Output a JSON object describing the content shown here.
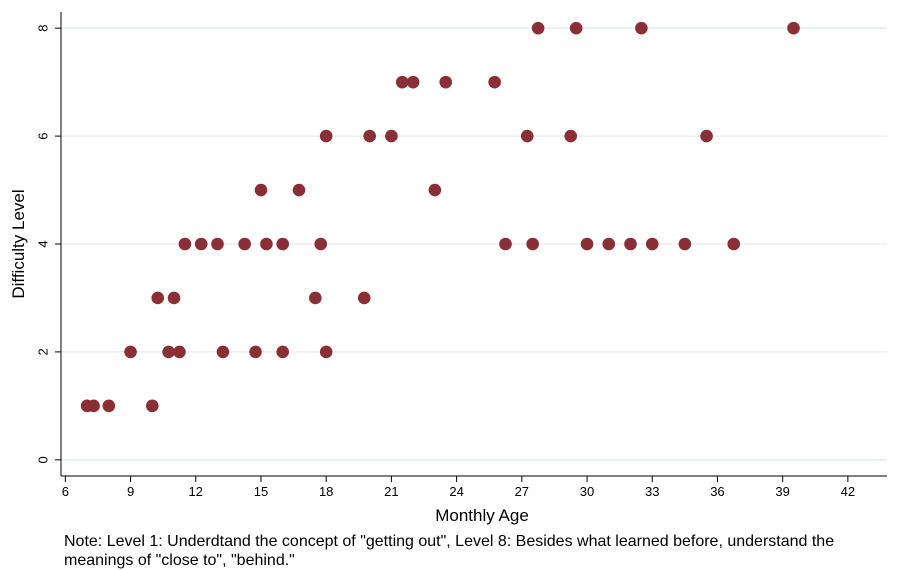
{
  "chart_data": {
    "type": "scatter",
    "title": "",
    "xlabel": "Monthly Age",
    "ylabel": "Difficulty Level",
    "xlim": [
      5.8,
      43.8
    ],
    "ylim": [
      -0.3,
      8.3
    ],
    "xticks": [
      6,
      9,
      12,
      15,
      18,
      21,
      24,
      27,
      30,
      33,
      36,
      39,
      42
    ],
    "yticks": [
      0,
      2,
      4,
      6,
      8
    ],
    "grid": true,
    "legend": "none",
    "marker_color": "#8b2f36",
    "points": [
      {
        "x": 7.0,
        "y": 1
      },
      {
        "x": 7.3,
        "y": 1
      },
      {
        "x": 8.0,
        "y": 1
      },
      {
        "x": 10.0,
        "y": 1
      },
      {
        "x": 9.0,
        "y": 2
      },
      {
        "x": 10.75,
        "y": 2
      },
      {
        "x": 11.25,
        "y": 2
      },
      {
        "x": 13.25,
        "y": 2
      },
      {
        "x": 14.75,
        "y": 2
      },
      {
        "x": 16.0,
        "y": 2
      },
      {
        "x": 18.0,
        "y": 2
      },
      {
        "x": 10.25,
        "y": 3
      },
      {
        "x": 11.0,
        "y": 3
      },
      {
        "x": 17.5,
        "y": 3
      },
      {
        "x": 19.75,
        "y": 3
      },
      {
        "x": 11.5,
        "y": 4
      },
      {
        "x": 12.25,
        "y": 4
      },
      {
        "x": 13.0,
        "y": 4
      },
      {
        "x": 14.25,
        "y": 4
      },
      {
        "x": 15.25,
        "y": 4
      },
      {
        "x": 16.0,
        "y": 4
      },
      {
        "x": 17.75,
        "y": 4
      },
      {
        "x": 26.25,
        "y": 4
      },
      {
        "x": 27.5,
        "y": 4
      },
      {
        "x": 30.0,
        "y": 4
      },
      {
        "x": 31.0,
        "y": 4
      },
      {
        "x": 32.0,
        "y": 4
      },
      {
        "x": 33.0,
        "y": 4
      },
      {
        "x": 34.5,
        "y": 4
      },
      {
        "x": 36.75,
        "y": 4
      },
      {
        "x": 15.0,
        "y": 5
      },
      {
        "x": 16.75,
        "y": 5
      },
      {
        "x": 23.0,
        "y": 5
      },
      {
        "x": 18.0,
        "y": 6
      },
      {
        "x": 20.0,
        "y": 6
      },
      {
        "x": 21.0,
        "y": 6
      },
      {
        "x": 27.25,
        "y": 6
      },
      {
        "x": 29.25,
        "y": 6
      },
      {
        "x": 35.5,
        "y": 6
      },
      {
        "x": 21.5,
        "y": 7
      },
      {
        "x": 22.0,
        "y": 7
      },
      {
        "x": 23.5,
        "y": 7
      },
      {
        "x": 25.75,
        "y": 7
      },
      {
        "x": 27.75,
        "y": 8
      },
      {
        "x": 29.5,
        "y": 8
      },
      {
        "x": 32.5,
        "y": 8
      },
      {
        "x": 39.5,
        "y": 8
      }
    ]
  },
  "note": "Note: Level 1: Underdtand the concept of \"getting out\", Level 8: Besides what learned before, understand the meanings of \"close to\", \"behind.\""
}
